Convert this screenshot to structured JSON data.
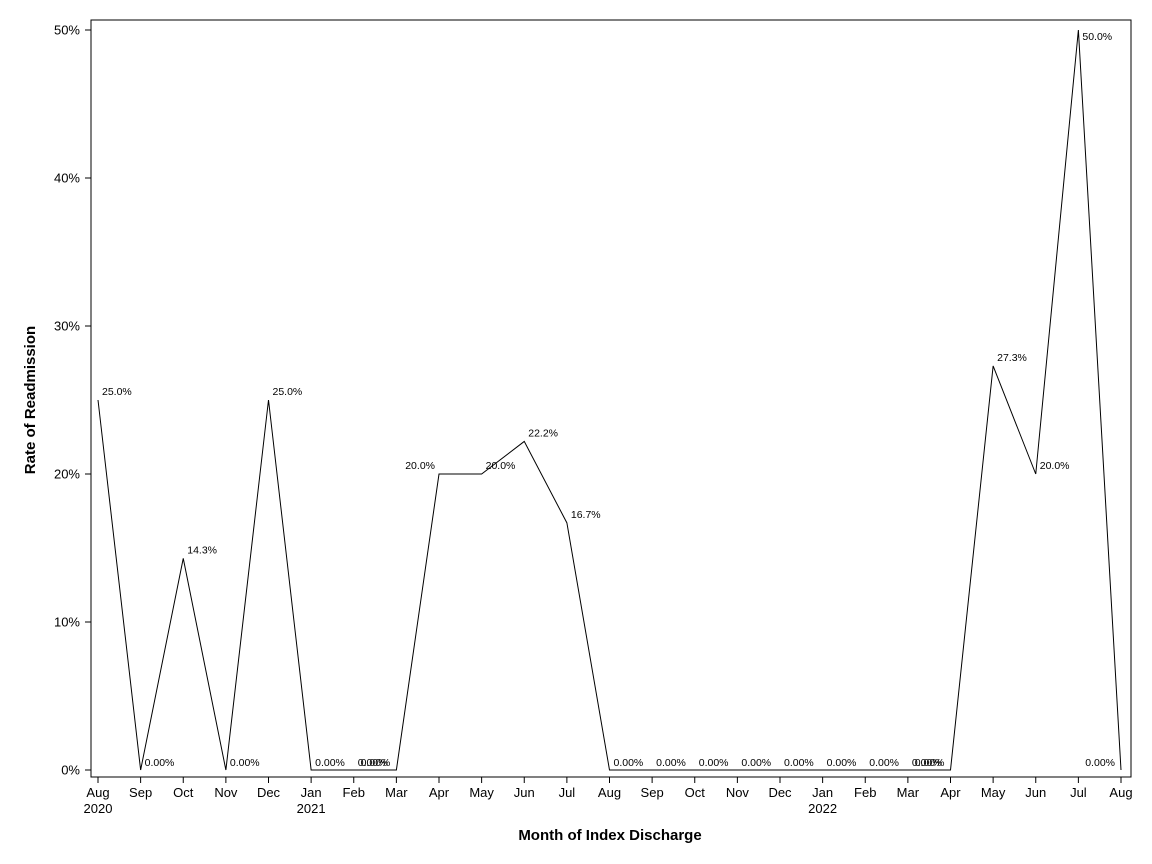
{
  "chart_data": {
    "type": "line",
    "xlabel": "Month of Index Discharge",
    "ylabel": "Rate of Readmission",
    "ylim": [
      0,
      50
    ],
    "yticks": [
      "0%",
      "10%",
      "20%",
      "30%",
      "40%",
      "50%"
    ],
    "grid": false,
    "x": [
      "Aug",
      "Sep",
      "Oct",
      "Nov",
      "Dec",
      "Jan",
      "Feb",
      "Mar",
      "Apr",
      "May",
      "Jun",
      "Jul",
      "Aug",
      "Sep",
      "Oct",
      "Nov",
      "Dec",
      "Jan",
      "Feb",
      "Mar",
      "Apr",
      "May",
      "Jun",
      "Jul",
      "Aug"
    ],
    "year_labels": [
      {
        "index": 0,
        "label": "2020"
      },
      {
        "index": 5,
        "label": "2021"
      },
      {
        "index": 17,
        "label": "2022"
      }
    ],
    "series": [
      {
        "values": [
          25.0,
          0,
          14.3,
          0,
          25.0,
          0,
          0,
          0,
          20.0,
          20.0,
          22.2,
          16.7,
          0,
          0,
          0,
          0,
          0,
          0,
          0,
          0,
          0,
          27.3,
          20.0,
          50.0,
          0
        ],
        "labels": [
          "25.0%",
          "0.00%",
          "14.3%",
          "0.00%",
          "25.0%",
          "0.00%",
          "0.00%",
          "0.00%",
          "20.0%",
          "20.0%",
          "22.2%",
          "16.7%",
          "0.00%",
          "0.00%",
          "0.00%",
          "0.00%",
          "0.00%",
          "0.00%",
          "0.00%",
          "0.00%",
          "0.00%",
          "27.3%",
          "20.0%",
          "50.0%",
          "0.00%"
        ]
      }
    ]
  }
}
